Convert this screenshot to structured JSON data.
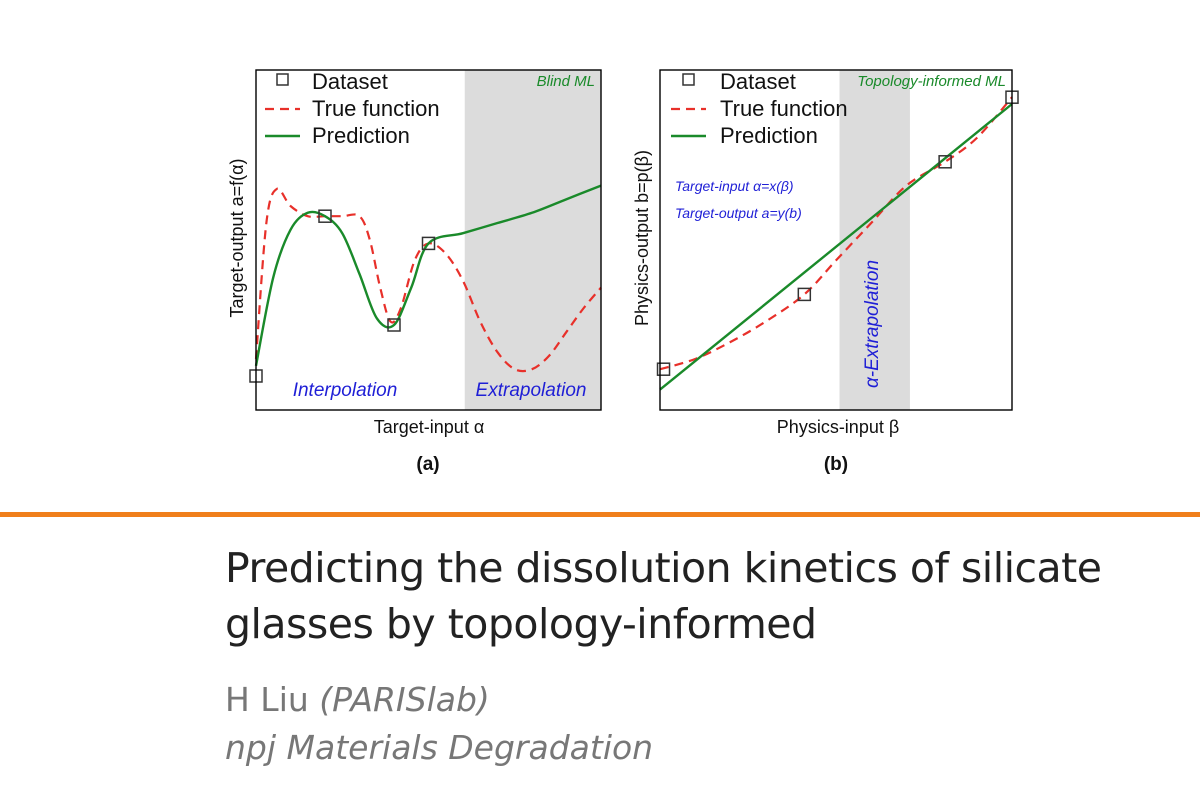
{
  "chart_data": [
    {
      "type": "line",
      "panel_label": "(a)",
      "xlabel": "Target-input α",
      "ylabel": "Target-output a=f(α)",
      "xlim": [
        0,
        1
      ],
      "ylim": [
        0,
        1
      ],
      "grid": false,
      "legend_position": "top-left",
      "region": {
        "x_start": 0.605,
        "x_end": 1.0,
        "label": "Blind ML"
      },
      "annotations": [
        {
          "text": "Interpolation",
          "position": "bottom-center-left"
        },
        {
          "text": "Extrapolation",
          "position": "bottom-right"
        }
      ],
      "series": [
        {
          "name": "Dataset",
          "marker": "square",
          "x": [
            0.0,
            0.2,
            0.4,
            0.5
          ],
          "y": [
            0.1,
            0.57,
            0.25,
            0.49
          ]
        },
        {
          "name": "True function",
          "style": "dashed",
          "color": "#e8302a",
          "x": [
            0.0,
            0.03,
            0.06,
            0.1,
            0.15,
            0.2,
            0.25,
            0.3,
            0.33,
            0.36,
            0.39,
            0.42,
            0.46,
            0.5,
            0.55,
            0.6,
            0.65,
            0.7,
            0.75,
            0.8,
            0.85,
            0.9,
            0.95,
            1.0
          ],
          "y": [
            0.15,
            0.55,
            0.65,
            0.6,
            0.57,
            0.57,
            0.57,
            0.57,
            0.5,
            0.36,
            0.26,
            0.3,
            0.44,
            0.49,
            0.46,
            0.38,
            0.26,
            0.17,
            0.12,
            0.12,
            0.16,
            0.23,
            0.3,
            0.36
          ]
        },
        {
          "name": "Prediction",
          "style": "solid",
          "color": "#1a8a2a",
          "x": [
            0.0,
            0.05,
            0.1,
            0.15,
            0.2,
            0.25,
            0.3,
            0.35,
            0.4,
            0.45,
            0.5,
            0.6,
            0.7,
            0.8,
            0.9,
            1.0
          ],
          "y": [
            0.13,
            0.39,
            0.53,
            0.58,
            0.57,
            0.52,
            0.4,
            0.27,
            0.25,
            0.36,
            0.49,
            0.52,
            0.55,
            0.58,
            0.62,
            0.66
          ]
        }
      ]
    },
    {
      "type": "line",
      "panel_label": "(b)",
      "xlabel": "Physics-input β",
      "ylabel": "Physics-output b=p(β)",
      "xlim": [
        0,
        1
      ],
      "ylim": [
        0,
        1
      ],
      "grid": false,
      "legend_position": "top-left",
      "region": {
        "x_start": 0.51,
        "x_end": 0.71,
        "label": "Topology-informed ML"
      },
      "annotations": [
        {
          "text": "α-Extrapolation",
          "position": "inside-region-vertical"
        },
        {
          "text": "Target-input α=x(β)",
          "position": "left-middle"
        },
        {
          "text": "Target-output a=y(b)",
          "position": "left-middle"
        }
      ],
      "series": [
        {
          "name": "Dataset",
          "marker": "square",
          "x": [
            0.01,
            0.41,
            0.81,
            1.0
          ],
          "y": [
            0.12,
            0.34,
            0.73,
            0.92
          ]
        },
        {
          "name": "True function",
          "style": "dashed",
          "color": "#e8302a",
          "x": [
            0.0,
            0.1,
            0.2,
            0.3,
            0.41,
            0.5,
            0.6,
            0.7,
            0.81,
            0.9,
            1.0
          ],
          "y": [
            0.12,
            0.15,
            0.2,
            0.26,
            0.34,
            0.44,
            0.55,
            0.66,
            0.73,
            0.8,
            0.92
          ]
        },
        {
          "name": "Prediction",
          "style": "solid",
          "color": "#1a8a2a",
          "x": [
            0.0,
            1.0
          ],
          "y": [
            0.06,
            0.9
          ]
        }
      ]
    }
  ],
  "article": {
    "title": "Predicting the dissolution kinetics of silicate glasses by topology-informed",
    "author": "H Liu",
    "affiliation": "(PARISlab)",
    "journal": "npj Materials Degradation"
  },
  "colors": {
    "accent": "#f07f1b",
    "true_function": "#e8302a",
    "prediction": "#1a8a2a",
    "annotation": "#1f1fd6",
    "region": "#dcdcdc"
  }
}
